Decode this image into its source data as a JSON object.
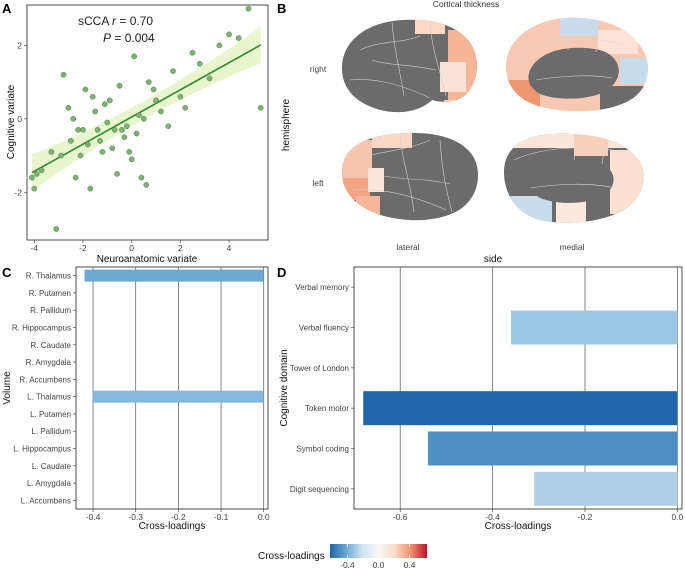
{
  "panels": {
    "A": {
      "letter": "A"
    },
    "B": {
      "letter": "B"
    },
    "C": {
      "letter": "C"
    },
    "D": {
      "letter": "D"
    }
  },
  "chart_data": [
    {
      "id": "A",
      "type": "scatter",
      "title": "",
      "annotation_stat": "sCCA",
      "annotation_r_symbol": "r",
      "annotation_r_value": "= 0.70",
      "annotation_p_symbol": "P",
      "annotation_p_value": "= 0.004",
      "xlabel": "Neuroanatomic variate",
      "ylabel": "Cognitive variate",
      "xlim": [
        -4.3,
        5.6
      ],
      "ylim": [
        -3.3,
        3.1
      ],
      "xticks": [
        -4,
        -2,
        0,
        2,
        4
      ],
      "yticks": [
        -2,
        0,
        2
      ],
      "point_color": "#7fb274",
      "line_color": "#2e8b2e",
      "band_color": "#e6f5c9",
      "fit": {
        "slope": 0.37,
        "intercept": 0.05,
        "ci_half_width_at_center": 0.25,
        "ci_half_width_at_edge": 0.5
      },
      "x": [
        -3.9,
        -4.1,
        -4.0,
        -3.7,
        -3.3,
        -3.1,
        -2.9,
        -2.8,
        -2.6,
        -2.5,
        -2.4,
        -2.3,
        -2.2,
        -2.0,
        -1.9,
        -1.8,
        -1.7,
        -1.6,
        -1.5,
        -1.4,
        -1.2,
        -1.1,
        -1.0,
        -0.9,
        -0.8,
        -0.6,
        -0.5,
        -0.4,
        -0.3,
        -0.2,
        -0.1,
        0.0,
        0.1,
        0.2,
        0.3,
        0.4,
        0.5,
        0.7,
        0.9,
        1.0,
        1.2,
        1.5,
        1.7,
        2.0,
        2.2,
        2.5,
        2.8,
        3.2,
        3.6,
        4.0,
        4.4,
        4.8,
        5.3,
        -2.1,
        -1.3,
        0.6,
        -0.7
      ],
      "y": [
        -1.5,
        -1.6,
        -1.9,
        -1.4,
        -0.9,
        -3.0,
        -1.0,
        1.2,
        0.3,
        -0.6,
        0.0,
        -1.6,
        -0.3,
        -0.3,
        0.8,
        -0.7,
        -1.9,
        0.6,
        0.2,
        -0.3,
        -0.9,
        0.4,
        -0.1,
        0.5,
        -0.8,
        -1.5,
        0.9,
        -0.3,
        -0.5,
        -0.2,
        -0.9,
        -1.1,
        1.7,
        -0.4,
        0.1,
        -1.6,
        0.0,
        1.0,
        0.8,
        0.5,
        0.2,
        -0.2,
        1.3,
        0.6,
        0.3,
        1.8,
        1.5,
        1.1,
        2.0,
        2.3,
        2.2,
        3.0,
        0.3,
        -1.0,
        -0.6,
        -1.8,
        -0.3
      ]
    },
    {
      "id": "B",
      "type": "brain_map",
      "title": "Cortical thickness",
      "row_labels": [
        "right",
        "left"
      ],
      "row_axis_title": "hemisphere",
      "col_labels": [
        "lateral",
        "medial"
      ],
      "col_axis_title": "side"
    },
    {
      "id": "C",
      "type": "bar",
      "orientation": "horizontal",
      "xlabel": "Cross-loadings",
      "ylabel": "Volume",
      "xlim": [
        -0.44,
        0.01
      ],
      "xticks": [
        -0.4,
        -0.3,
        -0.2,
        -0.1,
        0.0
      ],
      "xtick_labels": [
        "-0.4",
        "-0.3",
        "-0.2",
        "-0.1",
        "0.0"
      ],
      "categories": [
        "R. Thalamus",
        "R. Putamen",
        "R. Pallidum",
        "R. Hippocampus",
        "R. Caudate",
        "R. Amygdala",
        "R. Accumbens",
        "L. Thalamus",
        "L. Putamen",
        "L. Pallidum",
        "L. Hippocampus",
        "L. Caudate",
        "L. Amygdala",
        "L. Accumbens"
      ],
      "values": [
        -0.42,
        0,
        0,
        0,
        0,
        0,
        0,
        -0.4,
        0,
        0,
        0,
        0,
        0,
        0
      ],
      "colors": [
        "#6ea9d2",
        null,
        null,
        null,
        null,
        null,
        null,
        "#85b9dc",
        null,
        null,
        null,
        null,
        null,
        null
      ]
    },
    {
      "id": "D",
      "type": "bar",
      "orientation": "horizontal",
      "xlabel": "Cross-loadings",
      "ylabel": "Cognitive domain",
      "xlim": [
        -0.7,
        0.01
      ],
      "xticks": [
        -0.6,
        -0.4,
        -0.2,
        0.0
      ],
      "xtick_labels": [
        "-0.6",
        "-0.4",
        "-0.2",
        "0.0"
      ],
      "categories": [
        "Verbal memory",
        "Verbal fluency",
        "Tower of London",
        "Token motor",
        "Symbol coding",
        "Digit sequencing"
      ],
      "values": [
        0,
        -0.36,
        0,
        -0.68,
        -0.54,
        -0.31
      ],
      "colors": [
        null,
        "#9cc7e4",
        null,
        "#2166ac",
        "#4d8ec5",
        "#aed0e9"
      ]
    }
  ],
  "legend": {
    "title": "Cross-loadings",
    "ticks": [
      "-0.4",
      "0.0",
      "0.4"
    ],
    "colors": [
      "#2166ac",
      "#6aa7d2",
      "#d1e5f0",
      "#f7f7f7",
      "#fddbc7",
      "#f0906f",
      "#b2182b"
    ]
  }
}
